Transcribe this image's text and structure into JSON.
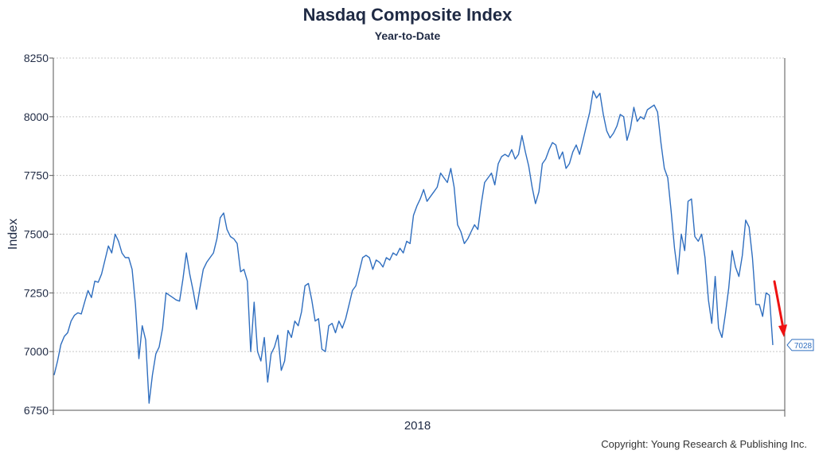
{
  "title": "Nasdaq Composite Index",
  "subtitle": "Year-to-Date",
  "copyright": "Copyright: Young Research & Publishing Inc.",
  "colors": {
    "line": "#2f6ebf",
    "arrow": "#ee1111",
    "grid": "#c8c8c8",
    "text": "#1f2a44"
  },
  "chart_data": {
    "type": "line",
    "title": "Nasdaq Composite Index",
    "subtitle": "Year-to-Date",
    "xlabel": "",
    "ylabel": "Index",
    "x_tick_labels": [
      "2018"
    ],
    "y_ticks": [
      6750,
      7000,
      7250,
      7500,
      7750,
      8000,
      8250
    ],
    "ylim": [
      6750,
      8250
    ],
    "grid": "horizontal",
    "last_value_label": "7028",
    "annotation": "red arrow pointing down to last value",
    "series": [
      {
        "values": [
          6900,
          6960,
          7030,
          7065,
          7080,
          7130,
          7155,
          7165,
          7160,
          7210,
          7260,
          7230,
          7300,
          7295,
          7330,
          7390,
          7450,
          7420,
          7500,
          7470,
          7420,
          7400,
          7400,
          7350,
          7200,
          6970,
          7110,
          7050,
          6780,
          6900,
          6990,
          7020,
          7100,
          7250,
          7240,
          7230,
          7220,
          7215,
          7310,
          7420,
          7330,
          7260,
          7180,
          7270,
          7350,
          7380,
          7400,
          7420,
          7480,
          7570,
          7590,
          7520,
          7490,
          7480,
          7460,
          7340,
          7350,
          7300,
          7000,
          7210,
          7000,
          6960,
          7060,
          6870,
          6990,
          7020,
          7070,
          6920,
          6960,
          7090,
          7060,
          7130,
          7110,
          7170,
          7280,
          7290,
          7220,
          7130,
          7140,
          7010,
          7000,
          7110,
          7120,
          7080,
          7130,
          7100,
          7140,
          7200,
          7260,
          7280,
          7340,
          7400,
          7410,
          7400,
          7350,
          7390,
          7380,
          7360,
          7400,
          7390,
          7420,
          7410,
          7440,
          7420,
          7470,
          7460,
          7580,
          7620,
          7650,
          7690,
          7640,
          7660,
          7680,
          7700,
          7760,
          7740,
          7720,
          7780,
          7700,
          7540,
          7510,
          7460,
          7480,
          7510,
          7540,
          7520,
          7630,
          7720,
          7740,
          7760,
          7710,
          7800,
          7830,
          7840,
          7830,
          7860,
          7820,
          7840,
          7920,
          7850,
          7790,
          7700,
          7630,
          7680,
          7800,
          7820,
          7860,
          7890,
          7880,
          7820,
          7850,
          7780,
          7800,
          7850,
          7880,
          7840,
          7900,
          7960,
          8020,
          8110,
          8080,
          8100,
          8010,
          7940,
          7910,
          7930,
          7960,
          8010,
          8000,
          7900,
          7950,
          8040,
          7980,
          8000,
          7990,
          8030,
          8040,
          8050,
          8020,
          7890,
          7780,
          7740,
          7600,
          7440,
          7330,
          7500,
          7430,
          7640,
          7650,
          7490,
          7470,
          7500,
          7400,
          7220,
          7120,
          7320,
          7100,
          7060,
          7160,
          7270,
          7430,
          7360,
          7320,
          7410,
          7560,
          7530,
          7400,
          7200,
          7200,
          7150,
          7250,
          7240,
          7028
        ]
      }
    ]
  }
}
